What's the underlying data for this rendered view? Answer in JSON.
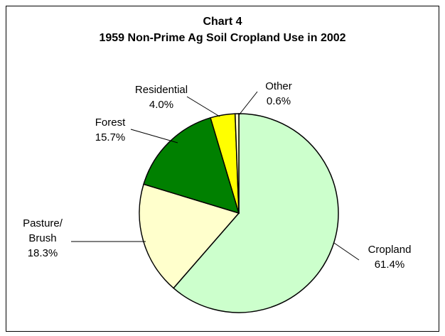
{
  "chart_data": {
    "type": "pie",
    "title": "Chart 4",
    "subtitle": "1959 Non-Prime Ag Soil Cropland Use in 2002",
    "categories": [
      "Cropland",
      "Pasture/\nBrush",
      "Forest",
      "Residential",
      "Other"
    ],
    "values": [
      61.4,
      18.3,
      15.7,
      4.0,
      0.6
    ],
    "value_labels": [
      "61.4%",
      "18.3%",
      "15.7%",
      "4.0%",
      "0.6%"
    ],
    "colors": [
      "#ccffcc",
      "#ffffcc",
      "#008000",
      "#ffff00",
      "#ffffcc"
    ]
  }
}
